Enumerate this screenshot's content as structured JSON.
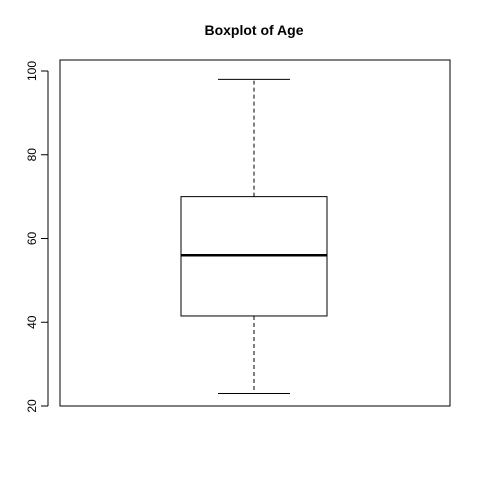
{
  "chart_data": {
    "type": "boxplot",
    "title": "Boxplot of Age",
    "xlabel": "",
    "ylabel": "",
    "ylim": [
      20,
      100
    ],
    "yticks": [
      20,
      40,
      60,
      80,
      100
    ],
    "grid": false,
    "box": {
      "whisker_low": 23,
      "q1": 41.5,
      "median": 56,
      "q3": 70,
      "whisker_high": 98
    }
  }
}
